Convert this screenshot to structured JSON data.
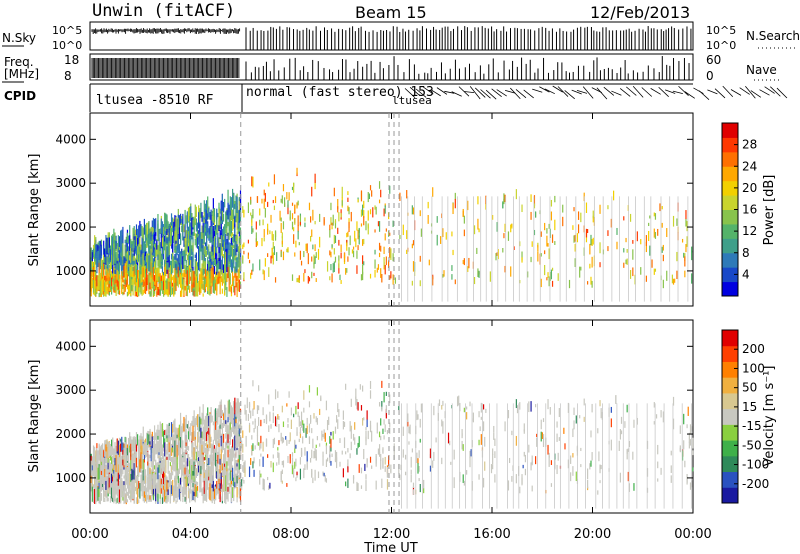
{
  "header": {
    "site": "Unwin (fitACF)",
    "beam": "Beam 15",
    "date": "12/Feb/2013"
  },
  "strips": {
    "nsky_label": "N.Sky",
    "nsearch_label": "N.Search",
    "nsky_ticks": [
      "10^5",
      "10^0"
    ],
    "nsearch_ticks": [
      "10^5",
      "10^0"
    ],
    "freq_label_1": "Freq.",
    "freq_label_2": "[MHz]",
    "freq_ticks": [
      "18",
      "8"
    ],
    "nave_label": "Nave",
    "nave_ticks": [
      "60",
      "0"
    ],
    "cpid_label": "CPID",
    "cpid_1": "ltusea -8510 RF",
    "cpid_2": "normal (fast stereo) 153",
    "cpid_3": "ltusea"
  },
  "chart_data": [
    {
      "type": "heatmap",
      "name": "power",
      "ylabel": "Slant Range [km]",
      "xlabel": "",
      "ylim": [
        200,
        4600
      ],
      "y_ticks": [
        1000,
        2000,
        3000,
        4000
      ],
      "colorbar_label": "Power [dB]",
      "colorbar_ticks": [
        "28",
        "24",
        "20",
        "16",
        "12",
        "8",
        "4"
      ],
      "colorbar_colors": [
        "#0000e0",
        "#1848c8",
        "#2e7ab8",
        "#3f9f8a",
        "#54b36a",
        "#88c34c",
        "#c9d42e",
        "#f2d000",
        "#ffa800",
        "#ff7000",
        "#ff3800",
        "#e00000"
      ],
      "x_ticks": [
        "00:00",
        "04:00",
        "08:00",
        "12:00",
        "16:00",
        "20:00",
        "00:00"
      ],
      "x_hours": [
        0,
        4,
        8,
        12,
        16,
        20,
        24
      ],
      "mode_change_hours": [
        6.0,
        11.9,
        12.1,
        12.3
      ]
    },
    {
      "type": "heatmap",
      "name": "velocity",
      "ylabel": "Slant Range [km]",
      "xlabel": "Time UT",
      "ylim": [
        200,
        4600
      ],
      "y_ticks": [
        1000,
        2000,
        3000,
        4000
      ],
      "colorbar_label": "Velocity [m s⁻¹]",
      "colorbar_ticks": [
        "200",
        "100",
        "50",
        "15",
        "-15",
        "-50",
        "-100",
        "-200"
      ],
      "colorbar_colors": [
        "#1a1aa0",
        "#2a52c0",
        "#2f8a5a",
        "#3fb04a",
        "#8ad040",
        "#c8c8c0",
        "#d8c890",
        "#f0b040",
        "#ff8000",
        "#ff4000",
        "#e00000"
      ],
      "x_ticks": [
        "00:00",
        "04:00",
        "08:00",
        "12:00",
        "16:00",
        "20:00",
        "00:00"
      ],
      "x_hours": [
        0,
        4,
        8,
        12,
        16,
        20,
        24
      ],
      "mode_change_hours": [
        6.0,
        11.9,
        12.1,
        12.3
      ]
    }
  ]
}
